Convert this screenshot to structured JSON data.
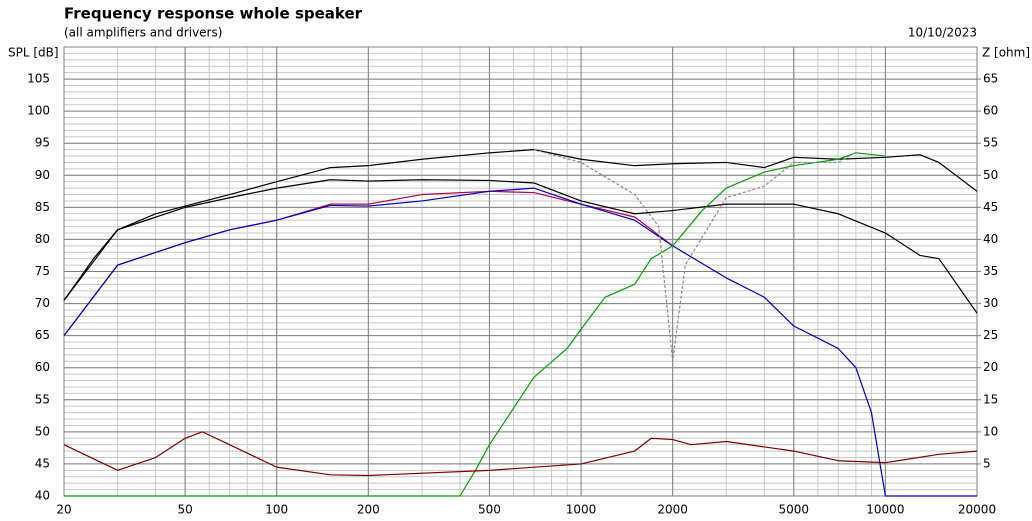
{
  "chart_data": {
    "type": "line",
    "title": "Frequency response whole speaker",
    "subtitle": "(all amplifiers and drivers)",
    "date": "10/10/2023",
    "y_label": "SPL [dB]",
    "y2_label": "Z [ohm]",
    "x_scale": "log",
    "xlim": [
      20,
      20000
    ],
    "xticks": [
      20,
      50,
      100,
      200,
      500,
      1000,
      2000,
      5000,
      10000,
      20000
    ],
    "ylim": [
      40,
      110
    ],
    "yticks": [
      40,
      45,
      50,
      55,
      60,
      65,
      70,
      75,
      80,
      85,
      90,
      95,
      100,
      105
    ],
    "y2lim": [
      0,
      70
    ],
    "y2ticks": [
      5,
      10,
      15,
      20,
      25,
      30,
      35,
      40,
      45,
      50,
      55,
      60,
      65
    ],
    "grid": true,
    "minor_grid": true,
    "series": [
      {
        "color": "#000000",
        "x": [
          20,
          25,
          30,
          40,
          50,
          70,
          100,
          150,
          200,
          300,
          500,
          700,
          1000,
          1500,
          2000,
          3000,
          4000,
          5000,
          7000,
          10000,
          13000,
          15000,
          20000
        ],
        "values": [
          70.5,
          77,
          81.5,
          84,
          85.2,
          87,
          89,
          91.2,
          91.5,
          92.5,
          93.5,
          94,
          92.5,
          91.5,
          91.8,
          92,
          91.2,
          92.8,
          92.5,
          92.8,
          93.2,
          92,
          87.5
        ]
      },
      {
        "color": "#000000",
        "x": [
          20,
          30,
          50,
          70,
          100,
          150,
          200,
          300,
          500,
          700,
          1000,
          1500,
          2000,
          3000,
          5000,
          7000,
          10000,
          13000,
          15000,
          20000
        ],
        "values": [
          70.5,
          81.5,
          85,
          86.5,
          88,
          89.3,
          89.1,
          89.3,
          89.2,
          88.8,
          86,
          84,
          84.5,
          85.5,
          85.5,
          84,
          81,
          77.5,
          77,
          68.5
        ]
      },
      {
        "color": "#b00050",
        "x": [
          20,
          30,
          50,
          70,
          100,
          150,
          200,
          300,
          500,
          700,
          1000,
          1500,
          2000
        ],
        "values": [
          65,
          76,
          79.5,
          81.5,
          83,
          85.5,
          85.5,
          87,
          87.5,
          87.3,
          85.5,
          83.5,
          79
        ]
      },
      {
        "color": "#0000c0",
        "x": [
          20,
          30,
          50,
          70,
          100,
          150,
          200,
          300,
          500,
          700,
          1000,
          1500,
          2000,
          3000,
          4000,
          5000,
          7000,
          8000,
          9000,
          10000,
          20000
        ],
        "values": [
          65,
          76,
          79.5,
          81.5,
          83,
          85.3,
          85.2,
          86,
          87.5,
          88,
          85.5,
          83,
          79,
          74,
          71,
          66.5,
          63,
          60,
          53,
          40,
          40
        ]
      },
      {
        "color": "#00a000",
        "x": [
          20,
          400,
          450,
          500,
          700,
          900,
          1000,
          1200,
          1500,
          1700,
          2000,
          2500,
          3000,
          4000,
          5000,
          7000,
          8000,
          10000
        ],
        "values": [
          40,
          40,
          44,
          48,
          58.5,
          63,
          66,
          71,
          73,
          77,
          79,
          84.5,
          88,
          90.5,
          91.5,
          92.5,
          93.5,
          93
        ]
      },
      {
        "color": "#888888",
        "dash": true,
        "x": [
          700,
          1000,
          1500,
          1800,
          2000,
          2200,
          3000,
          4000,
          5000,
          7000,
          8000
        ],
        "values": [
          94,
          92,
          87,
          82,
          61,
          76,
          86.5,
          88.3,
          92,
          92,
          93.6
        ]
      },
      {
        "color": "#800000",
        "axis": "y2",
        "x": [
          20,
          30,
          40,
          50,
          57,
          70,
          100,
          150,
          200,
          500,
          1000,
          1500,
          1700,
          2000,
          2300,
          3000,
          5000,
          7000,
          10000,
          15000,
          20000
        ],
        "values": [
          8,
          4,
          6,
          9,
          10,
          8,
          4.5,
          3.3,
          3.2,
          4,
          5,
          7,
          9,
          8.8,
          8,
          8.5,
          7,
          5.5,
          5.2,
          6.5,
          7
        ]
      }
    ]
  }
}
